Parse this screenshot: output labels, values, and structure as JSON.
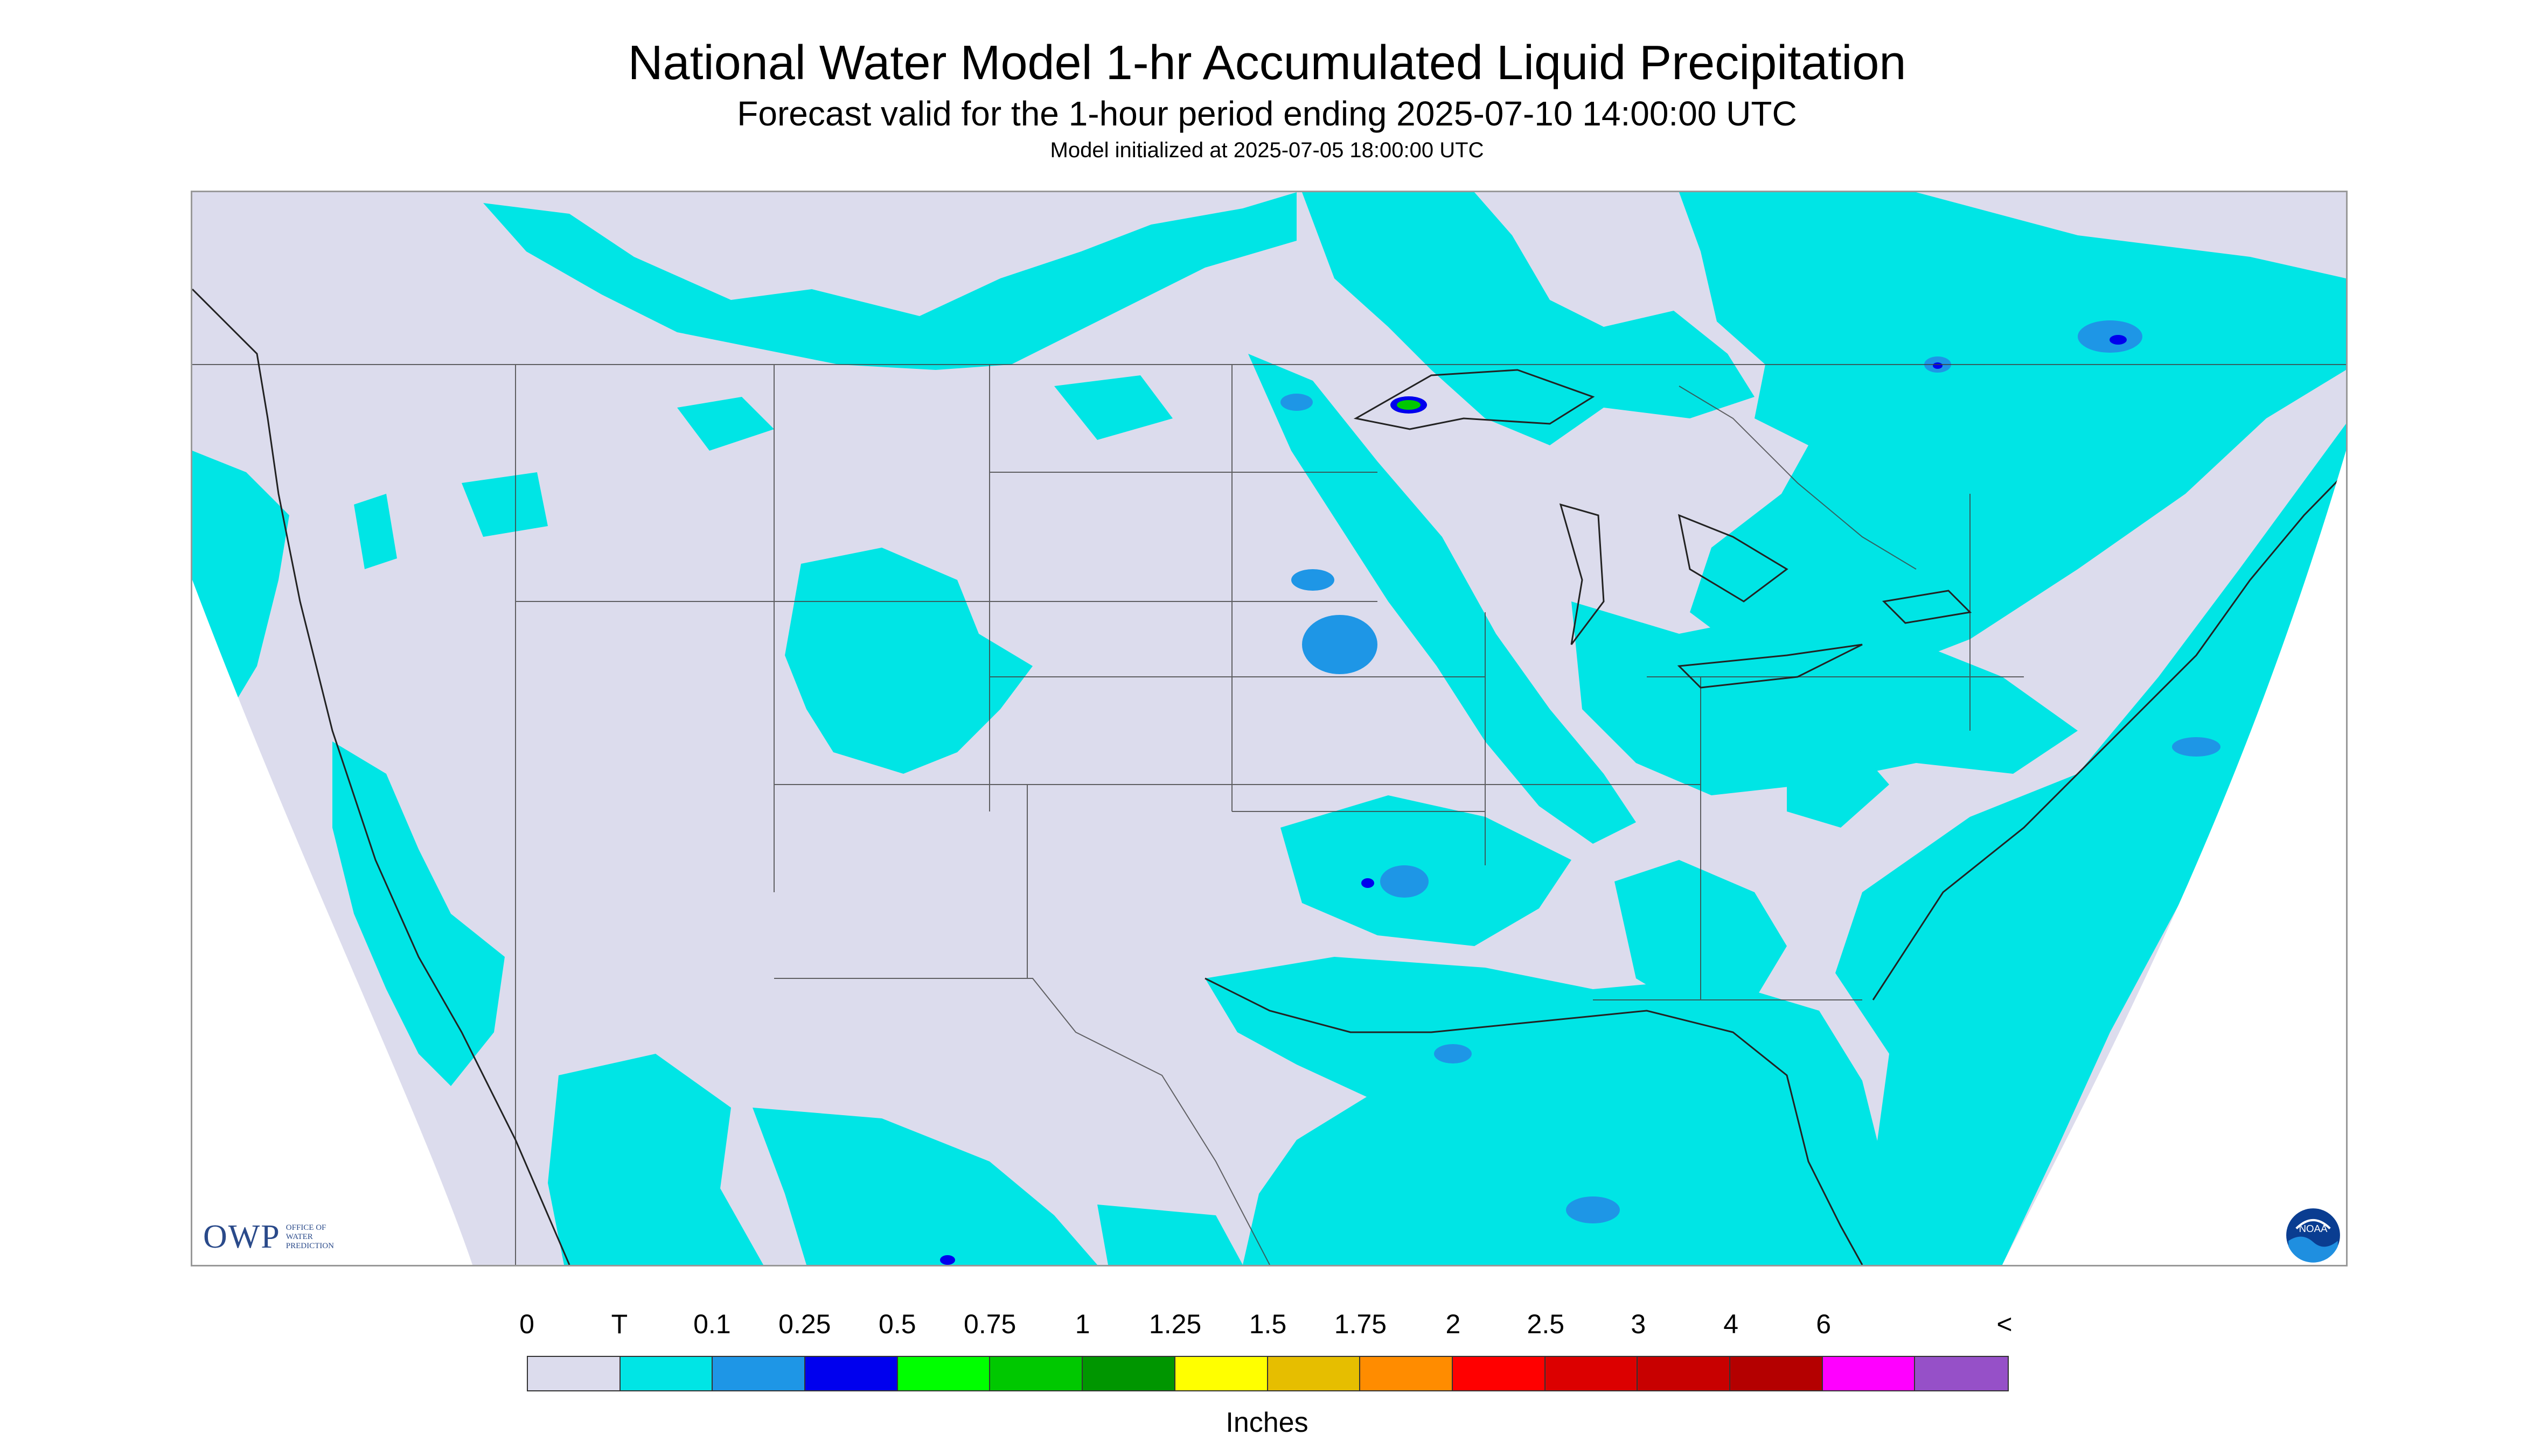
{
  "header": {
    "title": "National Water Model 1-hr Accumulated Liquid Precipitation",
    "subtitle": "Forecast valid for the 1-hour period ending 2025-07-10 14:00:00 UTC",
    "init_line": "Model initialized at 2025-07-05 18:00:00 UTC"
  },
  "map": {
    "background_color": "#dcdced",
    "trace_color": "#00e5e5",
    "light_rain_color": "#1e96e6",
    "moderate_rain_color": "#0000ee",
    "heavy_rain_color": "#00c800",
    "boundary_color": "#404040"
  },
  "logos": {
    "owp_mark": "OWP",
    "owp_lines": [
      "OFFICE OF",
      "WATER",
      "PREDICTION"
    ],
    "noaa_text": "NOAA"
  },
  "legend": {
    "labels": [
      "0",
      "T",
      "0.1",
      "0.25",
      "0.5",
      "0.75",
      "1",
      "1.25",
      "1.5",
      "1.75",
      "2",
      "2.5",
      "3",
      "4",
      "6",
      "<"
    ],
    "colors": [
      "#dcdced",
      "#00e5e5",
      "#1e96e6",
      "#0000ee",
      "#00ff00",
      "#00c800",
      "#009600",
      "#ffff00",
      "#e6be00",
      "#ff8c00",
      "#ff0000",
      "#dc0000",
      "#c80000",
      "#b40000",
      "#ff00ff",
      "#9650c8"
    ],
    "units": "Inches"
  }
}
